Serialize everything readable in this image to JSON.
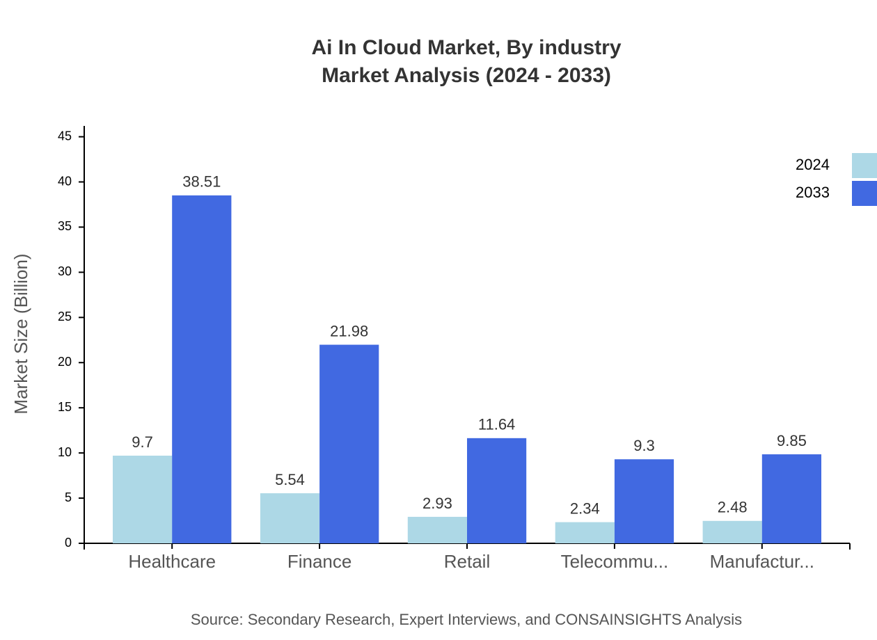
{
  "chart_data": {
    "type": "bar",
    "title": "Ai In Cloud Market, By industry",
    "subtitle": "Market Analysis (2024 - 2033)",
    "y_label": "Market Size (Billion)",
    "source": "Source: Secondary Research, Expert Interviews, and CONSAINSIGHTS Analysis",
    "categories": [
      "Healthcare",
      "Finance",
      "Retail",
      "Telecommu...",
      "Manufactur..."
    ],
    "series": [
      {
        "name": "2024",
        "color": "#add8e6",
        "values": [
          9.7,
          5.54,
          2.93,
          2.34,
          2.48
        ]
      },
      {
        "name": "2033",
        "color": "#4169e1",
        "values": [
          38.51,
          21.98,
          11.64,
          9.3,
          9.85
        ]
      }
    ],
    "ylim": [
      0,
      46.2
    ],
    "yticks": [
      0,
      5,
      10,
      15,
      20,
      25,
      30,
      35,
      40,
      45
    ],
    "grid": false,
    "legend": "top-right"
  }
}
